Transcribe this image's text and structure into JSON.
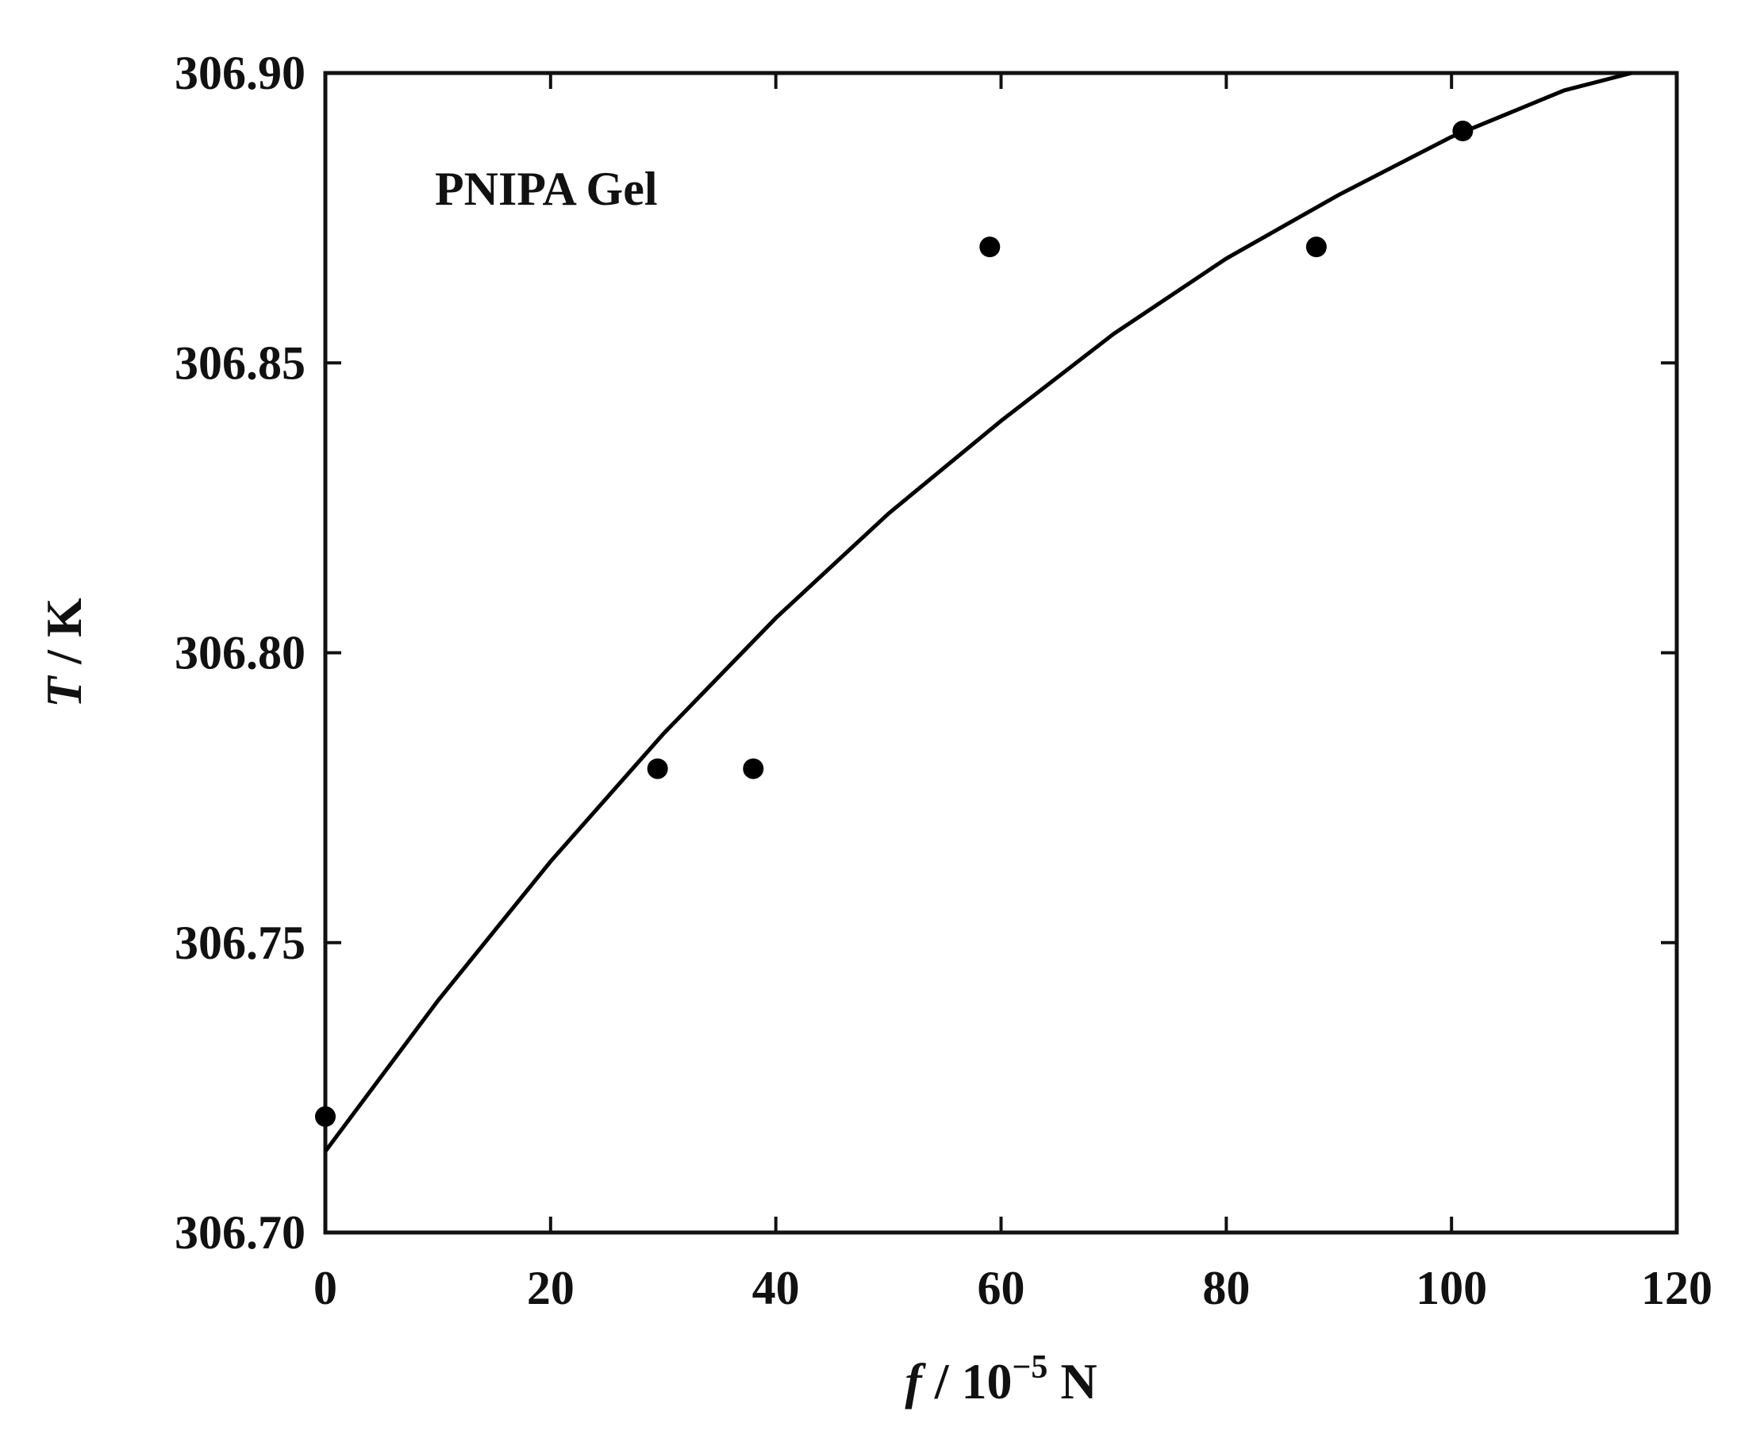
{
  "chart_data": {
    "type": "scatter",
    "annotation": "PNIPA Gel",
    "xlabel": {
      "italic": "f",
      "rest": " / 10",
      "superscript": "−5",
      "unit": " N"
    },
    "ylabel": {
      "italic": "T",
      "rest": " / K"
    },
    "xlim": [
      0,
      120
    ],
    "ylim": [
      306.7,
      306.9
    ],
    "xticks": [
      0,
      20,
      40,
      60,
      80,
      100,
      120
    ],
    "xtick_labels": [
      "0",
      "20",
      "40",
      "60",
      "80",
      "100",
      "120"
    ],
    "yticks": [
      306.7,
      306.75,
      306.8,
      306.85,
      306.9
    ],
    "ytick_labels": [
      "306.70",
      "306.75",
      "306.80",
      "306.85",
      "306.90"
    ],
    "grid": false,
    "points": [
      {
        "x": 0,
        "y": 306.72
      },
      {
        "x": 29.5,
        "y": 306.78
      },
      {
        "x": 38,
        "y": 306.78
      },
      {
        "x": 59,
        "y": 306.87
      },
      {
        "x": 88,
        "y": 306.87
      },
      {
        "x": 101,
        "y": 306.89
      }
    ],
    "fit_curve": {
      "x": [
        0,
        10,
        20,
        30,
        40,
        50,
        60,
        70,
        80,
        90,
        100,
        110,
        116
      ],
      "y": [
        306.714,
        306.74,
        306.764,
        306.786,
        306.806,
        306.824,
        306.84,
        306.855,
        306.868,
        306.879,
        306.889,
        306.897,
        306.9
      ]
    },
    "colors": {
      "marker": "#000000",
      "line": "#000000",
      "axis": "#111111"
    }
  }
}
